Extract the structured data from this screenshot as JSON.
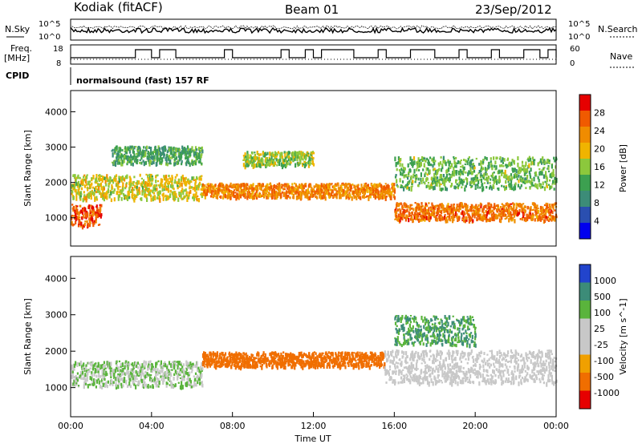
{
  "header": {
    "title": "Kodiak (fitACF)",
    "beam": "Beam 01",
    "date": "23/Sep/2012"
  },
  "params": {
    "nsky_label": "N.Sky",
    "nsearch_label": "N.Search",
    "freq_label": "Freq.",
    "freq_unit": "[MHz]",
    "nave_label": "Nave",
    "cpid_label": "CPID",
    "cpid_text": "normalsound (fast) 157 RF",
    "noise_ticks": [
      "10^5",
      "10^0"
    ],
    "noise_right_ticks": [
      "10^5",
      "10^0"
    ],
    "freq_ticks": [
      "18",
      "8"
    ],
    "nave_ticks": [
      "60",
      "0"
    ]
  },
  "colors": {
    "power": [
      "#0000ee",
      "#2a4fb0",
      "#3c8c78",
      "#3ca050",
      "#8cc83c",
      "#f0b400",
      "#f08c00",
      "#f05a00",
      "#e60000"
    ],
    "velocity": [
      "#2244cc",
      "#3c8c78",
      "#5ab43c",
      "#c8c8c8",
      "#c8c8c8",
      "#f0a000",
      "#f06e00",
      "#e60000"
    ]
  },
  "chart_data": [
    {
      "type": "heatmap",
      "name": "power",
      "ylabel": "Slant Range [km]",
      "xlabel": "",
      "y_ticks": [
        "1000",
        "2000",
        "3000",
        "4000"
      ],
      "ylim": [
        200,
        4600
      ],
      "colorbar_label": "Power [dB]",
      "colorbar_ticks": [
        "4",
        "8",
        "12",
        "16",
        "20",
        "24",
        "28"
      ],
      "colorbar_range": [
        0,
        32
      ],
      "x_ticks": [
        "00:00",
        "04:00",
        "08:00",
        "12:00",
        "16:00",
        "20:00",
        "00:00"
      ],
      "xlim_hours": [
        0,
        24
      ],
      "bands": [
        {
          "t_start": 0.0,
          "t_end": 1.5,
          "r_center": 1100,
          "r_width": 600,
          "level": 27
        },
        {
          "t_start": 0.0,
          "t_end": 6.5,
          "r_center": 1900,
          "r_width": 700,
          "level": 18
        },
        {
          "t_start": 2.0,
          "t_end": 6.5,
          "r_center": 2800,
          "r_width": 500,
          "level": 12
        },
        {
          "t_start": 6.5,
          "t_end": 16.0,
          "r_center": 1800,
          "r_width": 400,
          "level": 24
        },
        {
          "t_start": 8.5,
          "t_end": 12.0,
          "r_center": 2700,
          "r_width": 400,
          "level": 16
        },
        {
          "t_start": 16.0,
          "t_end": 24.0,
          "r_center": 1200,
          "r_width": 500,
          "level": 25
        },
        {
          "t_start": 16.0,
          "t_end": 24.0,
          "r_center": 2300,
          "r_width": 900,
          "level": 14
        }
      ]
    },
    {
      "type": "heatmap",
      "name": "velocity",
      "ylabel": "Slant Range [km]",
      "xlabel": "Time UT",
      "y_ticks": [
        "1000",
        "2000",
        "3000",
        "4000"
      ],
      "ylim": [
        200,
        4600
      ],
      "colorbar_label": "Velocity [m s^-1]",
      "colorbar_ticks": [
        "1000",
        "500",
        "100",
        "25",
        "-25",
        "-100",
        "-500",
        "-1000"
      ],
      "x_ticks": [
        "00:00",
        "04:00",
        "08:00",
        "12:00",
        "16:00",
        "20:00",
        "00:00"
      ],
      "xlim_hours": [
        0,
        24
      ],
      "bands": [
        {
          "t_start": 0.0,
          "t_end": 6.5,
          "r_center": 1400,
          "r_width": 700,
          "level": 25
        },
        {
          "t_start": 6.5,
          "t_end": 15.5,
          "r_center": 1800,
          "r_width": 400,
          "level": -300
        },
        {
          "t_start": 15.5,
          "t_end": 24.0,
          "r_center": 1600,
          "r_width": 900,
          "level": 0
        },
        {
          "t_start": 16.0,
          "t_end": 20.0,
          "r_center": 2600,
          "r_width": 800,
          "level": 100
        }
      ]
    }
  ]
}
